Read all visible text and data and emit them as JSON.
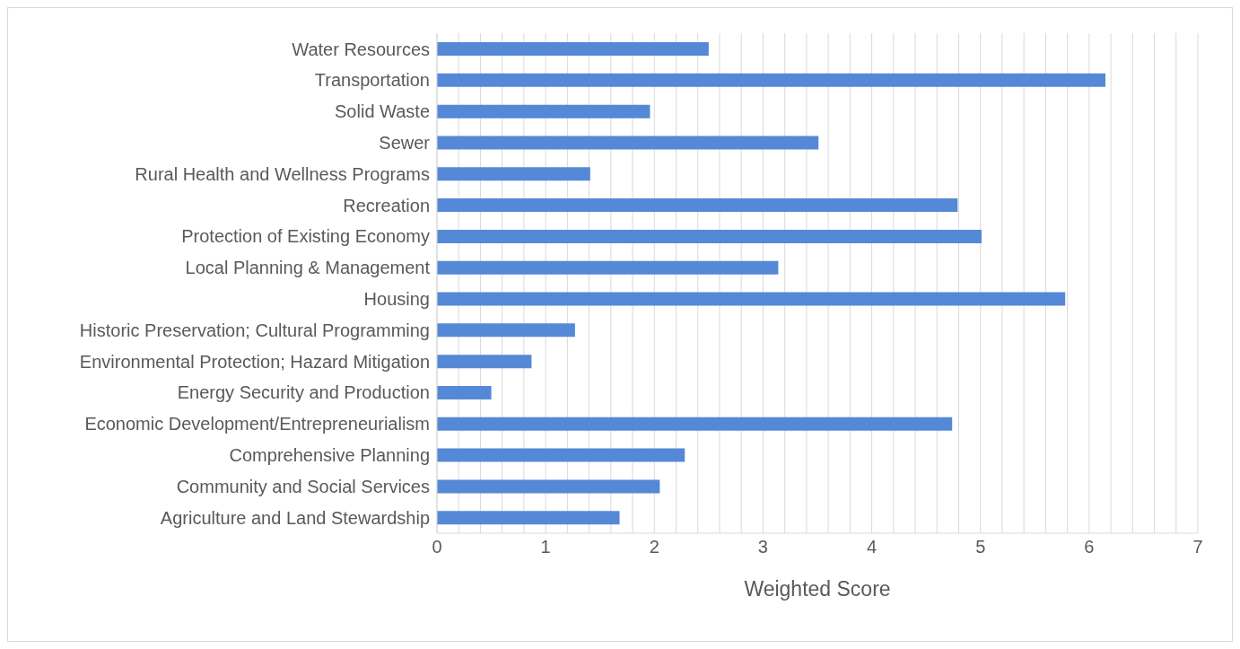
{
  "chart_data": {
    "type": "bar",
    "orientation": "horizontal",
    "xlabel": "Weighted Score",
    "categories": [
      "Water Resources",
      "Transportation",
      "Solid Waste",
      "Sewer",
      "Rural Health and Wellness Programs",
      "Recreation",
      "Protection of Existing Economy",
      "Local Planning & Management",
      "Housing",
      "Historic Preservation; Cultural Programming",
      "Environmental Protection; Hazard Mitigation",
      "Energy Security and Production",
      "Economic Development/Entrepreneurialism",
      "Comprehensive Planning",
      "Community and Social Services",
      "Agriculture and Land Stewardship"
    ],
    "values": [
      2.5,
      6.15,
      1.96,
      3.51,
      1.41,
      4.79,
      5.01,
      3.14,
      5.78,
      1.27,
      0.87,
      0.5,
      4.74,
      2.28,
      2.05,
      1.68
    ],
    "color": "#5588d6",
    "xlim": [
      0,
      7
    ],
    "xticks": [
      0,
      {
        "value": 0.2,
        "label": null
      },
      {
        "value": 0.4,
        "label": null
      },
      {
        "value": 0.6,
        "label": null
      },
      {
        "value": 0.8,
        "label": null
      },
      1,
      {
        "value": 1.2,
        "label": null
      },
      {
        "value": 1.4,
        "label": null
      },
      {
        "value": 1.6,
        "label": null
      },
      {
        "value": 1.8,
        "label": null
      },
      2,
      {
        "value": 2.2,
        "label": null
      },
      {
        "value": 2.4,
        "label": null
      },
      {
        "value": 2.6,
        "label": null
      },
      {
        "value": 2.8,
        "label": null
      },
      3,
      {
        "value": 3.2,
        "label": null
      },
      {
        "value": 3.4,
        "label": null
      },
      {
        "value": 3.6,
        "label": null
      },
      {
        "value": 3.8,
        "label": null
      },
      4,
      {
        "value": 4.2,
        "label": null
      },
      {
        "value": 4.4,
        "label": null
      },
      {
        "value": 4.6,
        "label": null
      },
      {
        "value": 4.8,
        "label": null
      },
      5,
      {
        "value": 5.2,
        "label": null
      },
      {
        "value": 5.4,
        "label": null
      },
      {
        "value": 5.6,
        "label": null
      },
      {
        "value": 5.8,
        "label": null
      },
      6,
      {
        "value": 6.2,
        "label": null
      },
      {
        "value": 6.4,
        "label": null
      },
      {
        "value": 6.6,
        "label": null
      },
      {
        "value": 6.8,
        "label": null
      },
      7
    ],
    "grid": "x"
  }
}
